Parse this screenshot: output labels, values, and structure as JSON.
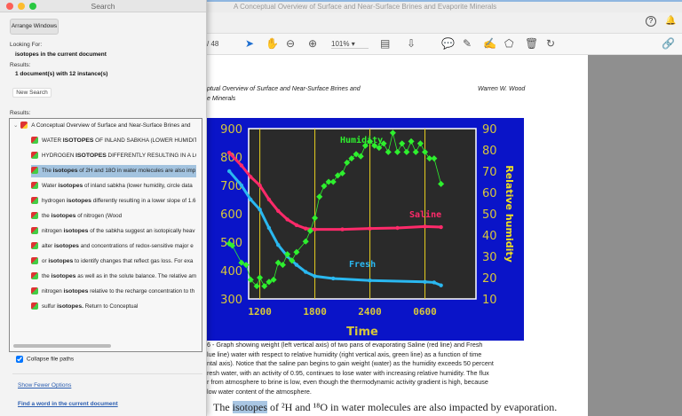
{
  "app": {
    "title": "A Conceptual Overview of Surface and Near-Surface Brines and Evaporite Minerals",
    "help_icon": "question-circle-icon",
    "bell_icon": "bell-icon"
  },
  "toolbar": {
    "page_total": "/ 48",
    "zoom": "101%",
    "tools": [
      "select-arrow-icon",
      "hand-icon",
      "zoom-out-icon",
      "zoom-in-icon",
      "page-display-icon",
      "scroll-mode-icon",
      "comment-icon",
      "highlight-pen-icon",
      "sign-icon",
      "stamp-icon",
      "trash-icon",
      "rotate-icon",
      "share-icon"
    ]
  },
  "document": {
    "header_title_1": "ptual Overview of Surface and Near-Surface Brines and",
    "header_title_2": "e Minerals",
    "author": "Warren W. Wood",
    "caption": [
      "6 - Graph showing weight (left vertical axis) of two pans of evaporating Saline (red line) and Fresh",
      "lue line) water with respect to relative humidity (right vertical axis, green line) as a function of time",
      "ntal axis). Notice that the saline pan begins to gain weight (water) as the humidity exceeds 50 percent",
      "resh water, with an activity of 0.95, continues to lose water with increasing relative humidity. The flux",
      "r from atmosphere to brine is low, even though the thermodynamic activity gradient is high, because",
      "low water content of the atmosphere."
    ],
    "body_pre": "The ",
    "body_hl": "isotopes",
    "body_post": " of ²H and ¹⁸O in water molecules are also impacted by evaporation."
  },
  "figure": {
    "xlabel": "Time",
    "ylabel_right": "Relative humidity",
    "x_ticks": [
      "1200",
      "1800",
      "2400",
      "0600"
    ],
    "y_left_ticks": [
      "900",
      "800",
      "700",
      "600",
      "500",
      "400",
      "300"
    ],
    "y_right_ticks": [
      "90",
      "80",
      "70",
      "60",
      "50",
      "40",
      "30",
      "20",
      "10"
    ],
    "y_left_range": [
      300,
      900
    ],
    "y_right_range": [
      10,
      90
    ],
    "colors": {
      "background": "#0a14c8",
      "plot": "#2a2a2a",
      "saline": "#ff2a6a",
      "fresh": "#2ab8f0",
      "humidity": "#2ef02e",
      "axis_text": "#d8c83a"
    },
    "labels": {
      "saline": "Saline",
      "fresh": "Fresh",
      "humidity": "Humidity"
    },
    "saline": [
      [
        "0840",
        815
      ],
      [
        "1000",
        770
      ],
      [
        "1100",
        730
      ],
      [
        "1200",
        700
      ],
      [
        "1300",
        650
      ],
      [
        "1400",
        610
      ],
      [
        "1500",
        580
      ],
      [
        "1600",
        560
      ],
      [
        "1700",
        548
      ],
      [
        "1800",
        545
      ],
      [
        "2100",
        545
      ],
      [
        "2400",
        548
      ],
      [
        "0300",
        550
      ],
      [
        "0600",
        555
      ],
      [
        "0745",
        553
      ]
    ],
    "fresh": [
      [
        "0840",
        750
      ],
      [
        "1000",
        700
      ],
      [
        "1100",
        650
      ],
      [
        "1200",
        615
      ],
      [
        "1300",
        550
      ],
      [
        "1400",
        490
      ],
      [
        "1500",
        450
      ],
      [
        "1600",
        420
      ],
      [
        "1700",
        395
      ],
      [
        "1800",
        380
      ],
      [
        "2000",
        372
      ],
      [
        "2400",
        365
      ],
      [
        "0600",
        360
      ],
      [
        "0700",
        358
      ],
      [
        "0745",
        348
      ]
    ],
    "humidity": [
      [
        "0840",
        36
      ],
      [
        "0900",
        35
      ],
      [
        "1000",
        27
      ],
      [
        "1030",
        26
      ],
      [
        "1100",
        19
      ],
      [
        "1140",
        16
      ],
      [
        "1200",
        20
      ],
      [
        "1230",
        16
      ],
      [
        "1300",
        18
      ],
      [
        "1330",
        19
      ],
      [
        "1400",
        27
      ],
      [
        "1430",
        26
      ],
      [
        "1500",
        31
      ],
      [
        "1530",
        28
      ],
      [
        "1600",
        32
      ],
      [
        "1700",
        37
      ],
      [
        "1730",
        42
      ],
      [
        "1800",
        48
      ],
      [
        "1830",
        58
      ],
      [
        "1900",
        63
      ],
      [
        "1930",
        65
      ],
      [
        "2000",
        65
      ],
      [
        "2030",
        68
      ],
      [
        "2100",
        69
      ],
      [
        "2130",
        74
      ],
      [
        "2200",
        76
      ],
      [
        "2230",
        78
      ],
      [
        "2300",
        77
      ],
      [
        "2330",
        82
      ],
      [
        "2400",
        84
      ],
      [
        "0030",
        82
      ],
      [
        "0100",
        81
      ],
      [
        "0130",
        83
      ],
      [
        "0200",
        79
      ],
      [
        "0230",
        88
      ],
      [
        "0300",
        79
      ],
      [
        "0330",
        83
      ],
      [
        "0400",
        79
      ],
      [
        "0430",
        84
      ],
      [
        "0500",
        79
      ],
      [
        "0530",
        83
      ],
      [
        "0600",
        79
      ],
      [
        "0630",
        76
      ],
      [
        "0700",
        76
      ],
      [
        "0745",
        64
      ]
    ]
  },
  "search": {
    "title": "Search",
    "arrange_windows": "Arrange Windows",
    "looking_for_label": "Looking For:",
    "looking_for_value": "isotopes in the current document",
    "results_label": "Results:",
    "results_value": "1 document(s) with 12 instance(s)",
    "new_search": "New Search",
    "results_list_label": "Results:",
    "document_node": "A Conceptual Overview of Surface and Near-Surface Brines and",
    "results": [
      {
        "pre": "WATER ",
        "term": "ISOTOPES",
        "post": " OF INLAND SABKHA (LOWER HUMIDITY"
      },
      {
        "pre": "HYDROGEN ",
        "term": "ISOTOPES",
        "post": " DIFFERENTLY RESULTING IN A LO"
      },
      {
        "pre": "The ",
        "term": "isotopes",
        "post": " of 2H and 18O in water molecules are also imp"
      },
      {
        "pre": "Water ",
        "term": "isotopes",
        "post": " of inland sabkha (lower humidity, circle data"
      },
      {
        "pre": "hydrogen ",
        "term": "isotopes",
        "post": " differently resulting in a lower slope of 1.6"
      },
      {
        "pre": "the ",
        "term": "isotopes",
        "post": " of nitrogen (Wood"
      },
      {
        "pre": "nitrogen ",
        "term": "isotopes",
        "post": " of the sabkha suggest an isotopically heav"
      },
      {
        "pre": "alter ",
        "term": "isotopes",
        "post": " and concentrations of redox-sensitive major e"
      },
      {
        "pre": "or ",
        "term": "isotopes",
        "post": " to identify changes that reflect gas loss. For exa"
      },
      {
        "pre": "the ",
        "term": "isotopes",
        "post": " as well as in the solute balance. The relative am"
      },
      {
        "pre": "nitrogen ",
        "term": "isotopes",
        "post": " relative to the recharge concentration to th"
      },
      {
        "pre": "sulfur ",
        "term": "isotopes.",
        "post": " Return to Conceptual"
      }
    ],
    "selected_index": 2,
    "collapse_label": "Collapse file paths",
    "collapse_checked": true,
    "show_fewer": "Show Fewer Options",
    "find_word": "Find a word in the current document"
  }
}
